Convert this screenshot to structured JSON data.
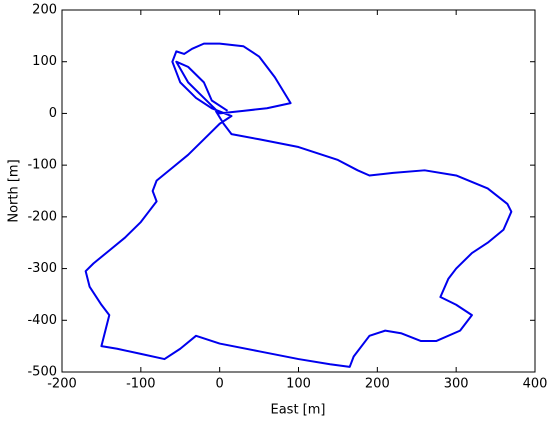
{
  "chart_data": {
    "type": "line",
    "xlabel": "East [m]",
    "ylabel": "North [m]",
    "xlim": [
      -200,
      400
    ],
    "ylim": [
      -500,
      200
    ],
    "xticks": [
      -200,
      -100,
      0,
      100,
      200,
      300,
      400
    ],
    "yticks": [
      -500,
      -400,
      -300,
      -200,
      -100,
      0,
      100,
      200
    ],
    "grid": false,
    "series": [
      {
        "color": "#0000ee",
        "x": [
          -5,
          5,
          15,
          50,
          100,
          150,
          175,
          190,
          220,
          260,
          300,
          340,
          365,
          370,
          360,
          340,
          320,
          300,
          290,
          280,
          300,
          320,
          305,
          275,
          255,
          230,
          210,
          190,
          170,
          165,
          140,
          100,
          50,
          0,
          -30,
          -50,
          -70,
          -100,
          -130,
          -150,
          -145,
          -140,
          -150,
          -165,
          -170,
          -160,
          -140,
          -120,
          -100,
          -90,
          -80,
          -85,
          -80,
          -60,
          -40,
          -20,
          0,
          15,
          -10,
          -30,
          -50,
          -55,
          -60,
          -55,
          -45,
          -35,
          -20,
          0,
          30,
          50,
          70,
          90,
          60,
          30,
          0,
          -20,
          -40,
          -55,
          -40,
          -20,
          -10,
          10
        ],
        "values": [
          5,
          -20,
          -40,
          -50,
          -65,
          -90,
          -110,
          -120,
          -115,
          -110,
          -120,
          -145,
          -175,
          -190,
          -225,
          -250,
          -270,
          -300,
          -320,
          -355,
          -370,
          -390,
          -420,
          -440,
          -440,
          -425,
          -420,
          -430,
          -470,
          -490,
          -485,
          -475,
          -460,
          -445,
          -430,
          -455,
          -475,
          -465,
          -455,
          -450,
          -420,
          -390,
          -370,
          -335,
          -305,
          -290,
          -265,
          -240,
          -210,
          -190,
          -170,
          -150,
          -130,
          -105,
          -80,
          -50,
          -20,
          -5,
          10,
          30,
          60,
          80,
          100,
          120,
          115,
          125,
          135,
          135,
          130,
          110,
          70,
          20,
          10,
          5,
          0,
          30,
          60,
          100,
          90,
          60,
          25,
          5
        ]
      }
    ]
  }
}
